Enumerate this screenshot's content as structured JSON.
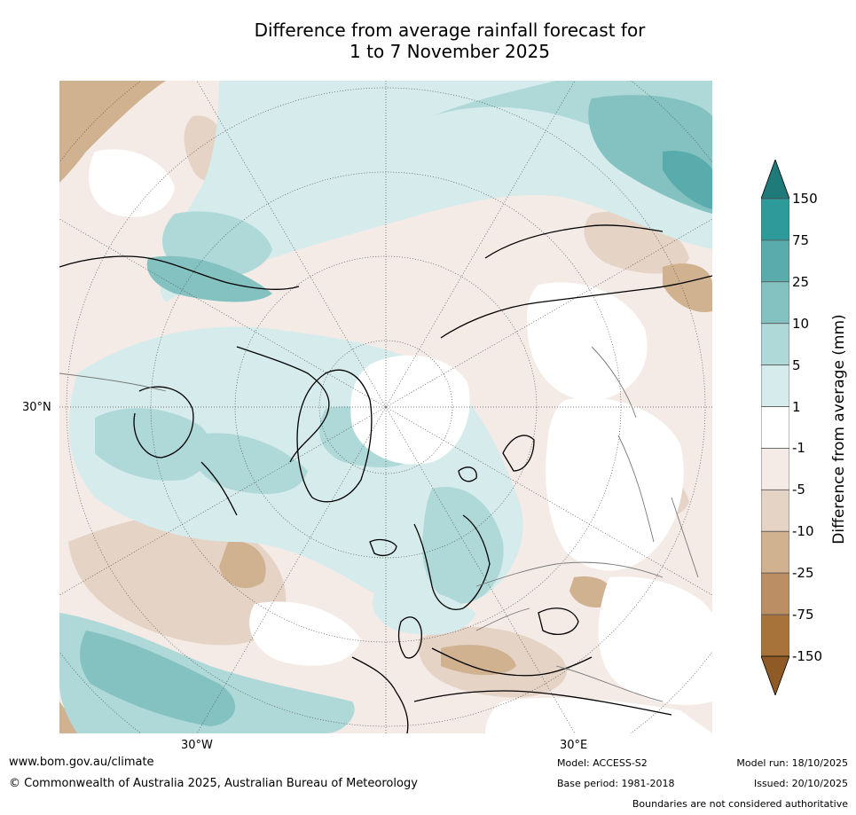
{
  "title": {
    "line1": "Difference from average rainfall forecast for",
    "line2": "1 to 7 November 2025"
  },
  "map": {
    "projection": "north-polar-stereographic",
    "lat_label": "30°N",
    "lon_labels": [
      "30°W",
      "30°E"
    ]
  },
  "colorbar": {
    "title": "Difference from average (mm)",
    "tick_labels": [
      "150",
      "75",
      "25",
      "10",
      "5",
      "1",
      "-1",
      "-5",
      "-10",
      "-25",
      "-75",
      "-150"
    ],
    "colors": [
      "#1f7a7a",
      "#2e9a9a",
      "#5aabab",
      "#84c2c2",
      "#afd8d8",
      "#d6ebeb",
      "#ffffff",
      "#f4ebe6",
      "#e5d3c5",
      "#d0b190",
      "#bb8f63",
      "#a8733b",
      "#8f5a25"
    ]
  },
  "footer": {
    "url": "www.bom.gov.au/climate",
    "copyright": "© Commonwealth of Australia 2025, Australian Bureau of Meteorology",
    "model": "Model: ACCESS-S2",
    "base_period": "Base period: 1981-2018",
    "model_run": "Model run: 18/10/2025",
    "issued": "Issued: 20/10/2025",
    "disclaimer": "Boundaries are not considered authoritative"
  }
}
